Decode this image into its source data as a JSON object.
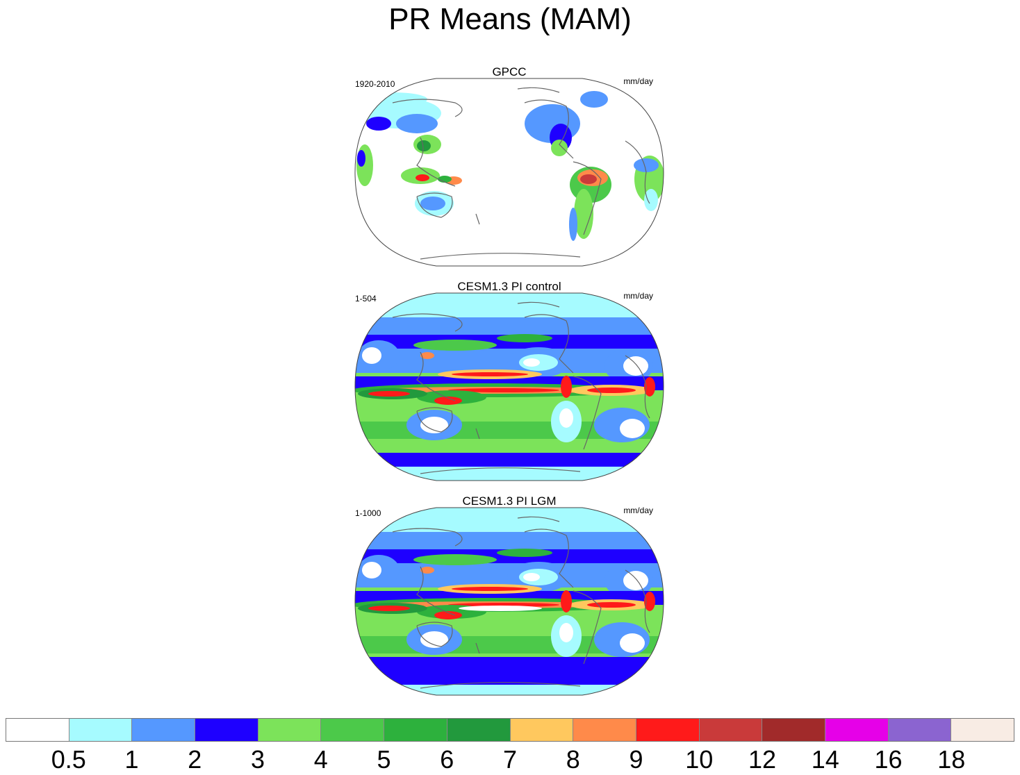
{
  "title": "PR Means (MAM)",
  "panels": [
    {
      "title": "GPCC",
      "period": "1920-2010",
      "units": "mm/day",
      "style": "obs"
    },
    {
      "title": "CESM1.3 PI control",
      "period": "1-504",
      "units": "mm/day",
      "style": "model"
    },
    {
      "title": "CESM1.3 PI LGM",
      "period": "1-1000",
      "units": "mm/day",
      "style": "model"
    }
  ],
  "colorbar": {
    "colors": [
      "#ffffff",
      "#a6fbff",
      "#5598ff",
      "#1e00ff",
      "#7ce35a",
      "#4cc94a",
      "#2db13d",
      "#22993d",
      "#ffc85e",
      "#ff8a4a",
      "#ff1a1a",
      "#c93a3a",
      "#a12a2a",
      "#e600e8",
      "#8b64d0",
      "#f8ece4"
    ],
    "labels": [
      "0.5",
      "1",
      "2",
      "3",
      "4",
      "5",
      "6",
      "7",
      "8",
      "9",
      "10",
      "12",
      "14",
      "16",
      "18"
    ]
  }
}
